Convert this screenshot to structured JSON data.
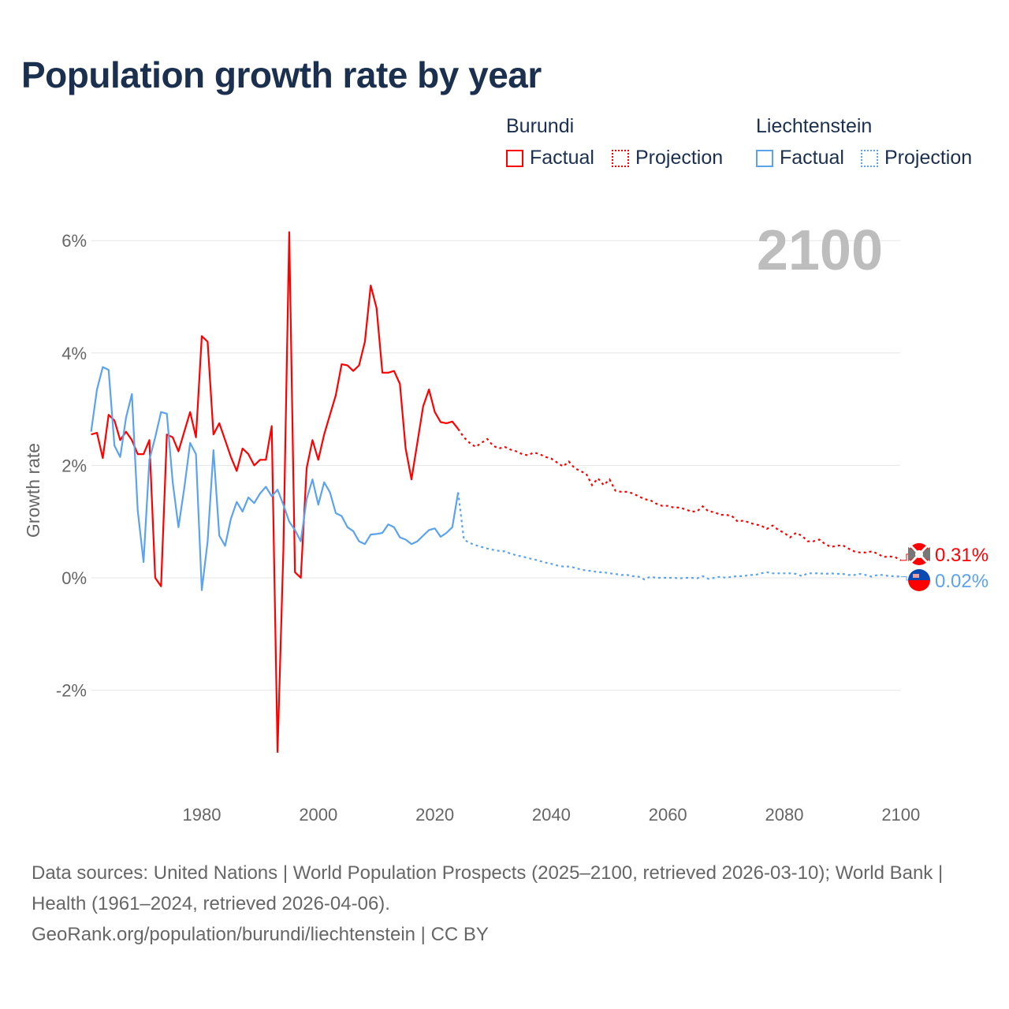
{
  "title": "Population growth rate by year",
  "legend": {
    "groups": [
      {
        "name": "Burundi",
        "color": "#ff0000",
        "factual": "Factual",
        "projection": "Projection"
      },
      {
        "name": "Liechtenstein",
        "color": "#5ba3ec",
        "factual": "Factual",
        "projection": "Projection"
      }
    ]
  },
  "year_watermark": "2100",
  "footer": {
    "sources": "Data sources: United Nations | World Population Prospects (2025–2100, retrieved 2026-03-10); World Bank | Health (1961–2024, retrieved 2026-04-06).",
    "credit": "GeoRank.org/population/burundi/liechtenstein | CC BY"
  },
  "chart_data": {
    "type": "line",
    "title": "Population growth rate by year",
    "xlabel": "",
    "ylabel": "Growth rate",
    "xlim": [
      1961,
      2100
    ],
    "ylim": [
      -3.8,
      6.2
    ],
    "x_ticks": [
      1980,
      2000,
      2020,
      2040,
      2060,
      2080,
      2100
    ],
    "x_tick_labels": [
      "1980",
      "2000",
      "2020",
      "2040",
      "2060",
      "2080",
      "2100"
    ],
    "y_ticks": [
      -2,
      0,
      2,
      4,
      6
    ],
    "y_tick_labels": [
      "-2%",
      "0%",
      "2%",
      "4%",
      "6%"
    ],
    "grid": true,
    "legend_position": "top-right",
    "series": [
      {
        "name": "Burundi",
        "color": "#ff0000",
        "end_label": "0.31%",
        "factual_start": 1961,
        "factual": [
          2.55,
          2.58,
          2.13,
          2.9,
          2.8,
          2.45,
          2.6,
          2.45,
          2.2,
          2.2,
          2.45,
          0.0,
          -0.15,
          2.55,
          2.5,
          2.25,
          2.6,
          2.95,
          2.5,
          4.3,
          4.2,
          2.55,
          2.75,
          2.45,
          2.15,
          1.9,
          2.3,
          2.2,
          2.0,
          2.1,
          2.1,
          2.7,
          -3.1,
          0.5,
          6.15,
          0.1,
          0.0,
          1.95,
          2.45,
          2.1,
          2.55,
          2.9,
          3.25,
          3.8,
          3.78,
          3.68,
          3.78,
          4.2,
          5.2,
          4.8,
          3.65,
          3.65,
          3.68,
          3.45,
          2.3,
          1.75,
          2.4,
          3.05,
          3.35,
          2.95,
          2.77,
          2.75,
          2.78,
          2.65
        ],
        "projection_start": 2025,
        "projection": [
          2.5,
          2.4,
          2.33,
          2.4,
          2.47,
          2.35,
          2.3,
          2.33,
          2.28,
          2.25,
          2.2,
          2.18,
          2.23,
          2.2,
          2.15,
          2.12,
          2.05,
          1.98,
          2.07,
          1.95,
          1.9,
          1.85,
          1.65,
          1.77,
          1.65,
          1.75,
          1.55,
          1.53,
          1.53,
          1.5,
          1.45,
          1.4,
          1.38,
          1.32,
          1.28,
          1.28,
          1.25,
          1.25,
          1.22,
          1.18,
          1.18,
          1.27,
          1.18,
          1.17,
          1.12,
          1.12,
          1.1,
          1.0,
          1.02,
          0.98,
          0.95,
          0.93,
          0.87,
          0.93,
          0.85,
          0.8,
          0.72,
          0.8,
          0.75,
          0.65,
          0.65,
          0.68,
          0.6,
          0.55,
          0.57,
          0.58,
          0.52,
          0.47,
          0.45,
          0.45,
          0.47,
          0.43,
          0.37,
          0.38,
          0.37,
          0.31
        ]
      },
      {
        "name": "Liechtenstein",
        "color": "#5ba3ec",
        "end_label": "0.02%",
        "factual_start": 1961,
        "factual": [
          2.6,
          3.35,
          3.75,
          3.7,
          2.35,
          2.15,
          2.85,
          3.27,
          1.2,
          0.28,
          2.1,
          2.5,
          2.95,
          2.92,
          1.7,
          0.9,
          1.6,
          2.4,
          2.2,
          -0.22,
          0.65,
          2.27,
          0.75,
          0.57,
          1.05,
          1.35,
          1.18,
          1.43,
          1.33,
          1.5,
          1.62,
          1.45,
          1.57,
          1.3,
          1.0,
          0.85,
          0.65,
          1.4,
          1.75,
          1.3,
          1.7,
          1.52,
          1.15,
          1.1,
          0.9,
          0.83,
          0.65,
          0.6,
          0.77,
          0.78,
          0.8,
          0.95,
          0.9,
          0.72,
          0.68,
          0.6,
          0.65,
          0.75,
          0.85,
          0.88,
          0.73,
          0.8,
          0.9,
          1.52
        ],
        "projection_start": 2025,
        "projection": [
          0.68,
          0.62,
          0.58,
          0.55,
          0.52,
          0.5,
          0.48,
          0.47,
          0.43,
          0.4,
          0.38,
          0.35,
          0.33,
          0.3,
          0.27,
          0.25,
          0.22,
          0.2,
          0.2,
          0.18,
          0.15,
          0.13,
          0.12,
          0.1,
          0.1,
          0.08,
          0.07,
          0.05,
          0.05,
          0.03,
          0.02,
          -0.03,
          0.02,
          0.0,
          0.0,
          0.0,
          0.0,
          -0.01,
          0.0,
          0.0,
          -0.01,
          0.03,
          -0.02,
          0.0,
          0.02,
          0.0,
          0.02,
          0.03,
          0.03,
          0.05,
          0.05,
          0.08,
          0.1,
          0.08,
          0.08,
          0.08,
          0.08,
          0.07,
          0.03,
          0.08,
          0.08,
          0.08,
          0.07,
          0.08,
          0.07,
          0.07,
          0.05,
          0.05,
          0.07,
          0.05,
          0.02,
          0.05,
          0.05,
          0.03,
          0.03,
          0.02
        ]
      }
    ]
  }
}
